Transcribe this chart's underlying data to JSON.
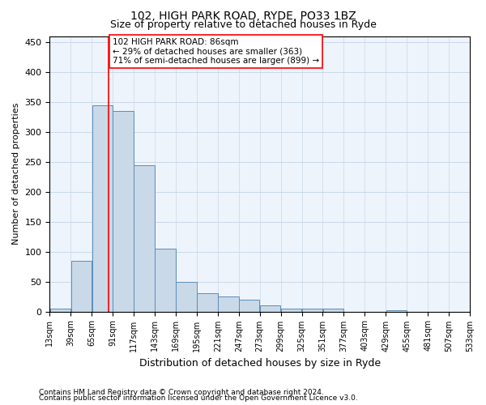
{
  "title_line1": "102, HIGH PARK ROAD, RYDE, PO33 1BZ",
  "title_line2": "Size of property relative to detached houses in Ryde",
  "xlabel": "Distribution of detached houses by size in Ryde",
  "ylabel": "Number of detached properties",
  "footnote1": "Contains HM Land Registry data © Crown copyright and database right 2024.",
  "footnote2": "Contains public sector information licensed under the Open Government Licence v3.0.",
  "annotation_line1": "102 HIGH PARK ROAD: 86sqm",
  "annotation_line2": "← 29% of detached houses are smaller (363)",
  "annotation_line3": "71% of semi-detached houses are larger (899) →",
  "bar_color": "#c9d9e8",
  "bar_edge_color": "#5b8db8",
  "grid_color": "#c8d8e8",
  "background_color": "#eef4fb",
  "vline_color": "red",
  "vline_x": 86,
  "bin_edges": [
    13,
    39,
    65,
    91,
    117,
    143,
    169,
    195,
    221,
    247,
    273,
    299,
    325,
    351,
    377,
    403,
    429,
    455,
    481,
    507,
    533
  ],
  "bar_heights": [
    5,
    85,
    345,
    335,
    245,
    105,
    50,
    30,
    25,
    20,
    10,
    5,
    5,
    5,
    0,
    0,
    2,
    0,
    0,
    0
  ],
  "ylim": [
    0,
    460
  ],
  "yticks": [
    0,
    50,
    100,
    150,
    200,
    250,
    300,
    350,
    400,
    450
  ]
}
